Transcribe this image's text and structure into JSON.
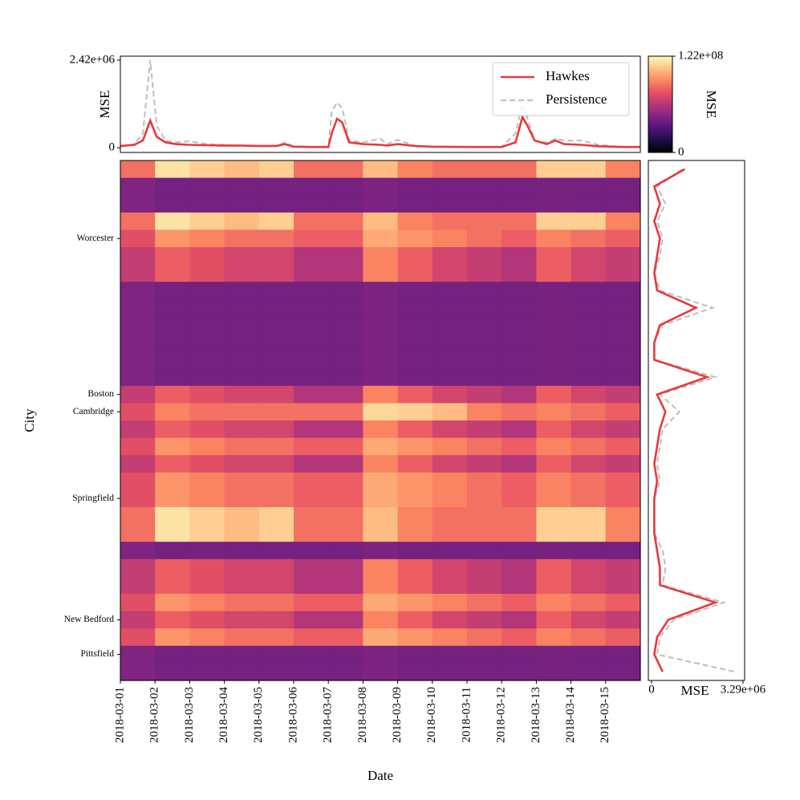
{
  "chart_data": [
    {
      "type": "heatmap",
      "xlabel": "Date",
      "ylabel": "City",
      "colormap": "magma",
      "categories": [
        "2018-03-01",
        "2018-03-02",
        "2018-03-03",
        "2018-03-04",
        "2018-03-05",
        "2018-03-06",
        "2018-03-07",
        "2018-03-08",
        "2018-03-09",
        "2018-03-10",
        "2018-03-11",
        "2018-03-12",
        "2018-03-13",
        "2018-03-14",
        "2018-03-15"
      ],
      "rows": [
        null,
        null,
        null,
        null,
        "Worcester",
        null,
        null,
        null,
        null,
        null,
        null,
        null,
        null,
        "Boston",
        "Cambridge",
        null,
        null,
        null,
        null,
        "Springfield",
        null,
        null,
        null,
        null,
        null,
        null,
        "New Bedford",
        null,
        "Pittsfield",
        null
      ],
      "zlabel": "MSE",
      "zlim": [
        0,
        122000000.0
      ],
      "zticks": [
        0,
        {
          "value": 122000000.0,
          "label": "1.22e+08"
        }
      ],
      "values": [
        [
          85000000.0,
          115000000.0,
          110000000.0,
          105000000.0,
          110000000.0,
          85000000.0,
          85000000.0,
          105000000.0,
          90000000.0,
          85000000.0,
          85000000.0,
          85000000.0,
          110000000.0,
          110000000.0,
          90000000.0
        ],
        [
          45000000.0,
          42000000.0,
          42000000.0,
          42000000.0,
          42000000.0,
          42000000.0,
          42000000.0,
          44000000.0,
          42000000.0,
          42000000.0,
          42000000.0,
          42000000.0,
          43000000.0,
          42000000.0,
          42000000.0
        ],
        [
          45000000.0,
          42000000.0,
          42000000.0,
          42000000.0,
          42000000.0,
          42000000.0,
          42000000.0,
          44000000.0,
          42000000.0,
          42000000.0,
          42000000.0,
          42000000.0,
          43000000.0,
          42000000.0,
          42000000.0
        ],
        [
          85000000.0,
          115000000.0,
          110000000.0,
          105000000.0,
          110000000.0,
          85000000.0,
          85000000.0,
          105000000.0,
          90000000.0,
          85000000.0,
          85000000.0,
          85000000.0,
          110000000.0,
          110000000.0,
          90000000.0
        ],
        [
          75000000.0,
          95000000.0,
          90000000.0,
          85000000.0,
          85000000.0,
          80000000.0,
          80000000.0,
          100000000.0,
          95000000.0,
          90000000.0,
          85000000.0,
          80000000.0,
          90000000.0,
          85000000.0,
          80000000.0
        ],
        [
          65000000.0,
          80000000.0,
          75000000.0,
          70000000.0,
          70000000.0,
          60000000.0,
          60000000.0,
          90000000.0,
          80000000.0,
          70000000.0,
          65000000.0,
          60000000.0,
          80000000.0,
          70000000.0,
          65000000.0
        ],
        [
          65000000.0,
          80000000.0,
          75000000.0,
          70000000.0,
          70000000.0,
          60000000.0,
          60000000.0,
          90000000.0,
          80000000.0,
          70000000.0,
          65000000.0,
          60000000.0,
          80000000.0,
          70000000.0,
          65000000.0
        ],
        [
          45000000.0,
          42000000.0,
          42000000.0,
          42000000.0,
          42000000.0,
          42000000.0,
          42000000.0,
          44000000.0,
          42000000.0,
          42000000.0,
          42000000.0,
          42000000.0,
          43000000.0,
          42000000.0,
          42000000.0
        ],
        [
          45000000.0,
          42000000.0,
          42000000.0,
          42000000.0,
          42000000.0,
          42000000.0,
          42000000.0,
          44000000.0,
          42000000.0,
          42000000.0,
          42000000.0,
          42000000.0,
          43000000.0,
          42000000.0,
          42000000.0
        ],
        [
          45000000.0,
          42000000.0,
          42000000.0,
          42000000.0,
          42000000.0,
          42000000.0,
          42000000.0,
          44000000.0,
          42000000.0,
          42000000.0,
          42000000.0,
          42000000.0,
          43000000.0,
          42000000.0,
          42000000.0
        ],
        [
          45000000.0,
          42000000.0,
          42000000.0,
          42000000.0,
          42000000.0,
          42000000.0,
          42000000.0,
          44000000.0,
          42000000.0,
          42000000.0,
          42000000.0,
          42000000.0,
          43000000.0,
          42000000.0,
          42000000.0
        ],
        [
          45000000.0,
          42000000.0,
          42000000.0,
          42000000.0,
          42000000.0,
          42000000.0,
          42000000.0,
          44000000.0,
          42000000.0,
          42000000.0,
          42000000.0,
          42000000.0,
          43000000.0,
          42000000.0,
          42000000.0
        ],
        [
          45000000.0,
          42000000.0,
          42000000.0,
          42000000.0,
          42000000.0,
          42000000.0,
          42000000.0,
          44000000.0,
          42000000.0,
          42000000.0,
          42000000.0,
          42000000.0,
          43000000.0,
          42000000.0,
          42000000.0
        ],
        [
          65000000.0,
          80000000.0,
          75000000.0,
          70000000.0,
          70000000.0,
          60000000.0,
          60000000.0,
          90000000.0,
          80000000.0,
          70000000.0,
          65000000.0,
          60000000.0,
          80000000.0,
          70000000.0,
          65000000.0
        ],
        [
          75000000.0,
          90000000.0,
          85000000.0,
          85000000.0,
          85000000.0,
          85000000.0,
          85000000.0,
          112000000.0,
          110000000.0,
          105000000.0,
          90000000.0,
          85000000.0,
          90000000.0,
          85000000.0,
          80000000.0
        ],
        [
          65000000.0,
          80000000.0,
          75000000.0,
          70000000.0,
          70000000.0,
          60000000.0,
          60000000.0,
          90000000.0,
          80000000.0,
          70000000.0,
          65000000.0,
          60000000.0,
          80000000.0,
          70000000.0,
          65000000.0
        ],
        [
          75000000.0,
          95000000.0,
          90000000.0,
          85000000.0,
          85000000.0,
          80000000.0,
          80000000.0,
          100000000.0,
          95000000.0,
          90000000.0,
          85000000.0,
          80000000.0,
          90000000.0,
          85000000.0,
          80000000.0
        ],
        [
          65000000.0,
          80000000.0,
          75000000.0,
          70000000.0,
          70000000.0,
          60000000.0,
          60000000.0,
          90000000.0,
          80000000.0,
          70000000.0,
          65000000.0,
          60000000.0,
          80000000.0,
          70000000.0,
          65000000.0
        ],
        [
          75000000.0,
          95000000.0,
          90000000.0,
          85000000.0,
          85000000.0,
          80000000.0,
          80000000.0,
          100000000.0,
          95000000.0,
          90000000.0,
          85000000.0,
          80000000.0,
          90000000.0,
          85000000.0,
          80000000.0
        ],
        [
          75000000.0,
          95000000.0,
          90000000.0,
          85000000.0,
          85000000.0,
          80000000.0,
          80000000.0,
          100000000.0,
          95000000.0,
          90000000.0,
          85000000.0,
          80000000.0,
          90000000.0,
          85000000.0,
          80000000.0
        ],
        [
          85000000.0,
          115000000.0,
          110000000.0,
          105000000.0,
          110000000.0,
          85000000.0,
          85000000.0,
          105000000.0,
          90000000.0,
          85000000.0,
          85000000.0,
          85000000.0,
          110000000.0,
          110000000.0,
          90000000.0
        ],
        [
          85000000.0,
          115000000.0,
          110000000.0,
          105000000.0,
          110000000.0,
          85000000.0,
          85000000.0,
          105000000.0,
          90000000.0,
          85000000.0,
          85000000.0,
          85000000.0,
          110000000.0,
          110000000.0,
          90000000.0
        ],
        [
          45000000.0,
          42000000.0,
          42000000.0,
          42000000.0,
          42000000.0,
          42000000.0,
          42000000.0,
          44000000.0,
          42000000.0,
          42000000.0,
          42000000.0,
          42000000.0,
          43000000.0,
          42000000.0,
          42000000.0
        ],
        [
          65000000.0,
          80000000.0,
          75000000.0,
          70000000.0,
          70000000.0,
          60000000.0,
          60000000.0,
          90000000.0,
          80000000.0,
          70000000.0,
          65000000.0,
          60000000.0,
          80000000.0,
          70000000.0,
          65000000.0
        ],
        [
          65000000.0,
          80000000.0,
          75000000.0,
          70000000.0,
          70000000.0,
          60000000.0,
          60000000.0,
          90000000.0,
          80000000.0,
          70000000.0,
          65000000.0,
          60000000.0,
          80000000.0,
          70000000.0,
          65000000.0
        ],
        [
          75000000.0,
          95000000.0,
          90000000.0,
          85000000.0,
          85000000.0,
          80000000.0,
          80000000.0,
          100000000.0,
          95000000.0,
          90000000.0,
          85000000.0,
          80000000.0,
          90000000.0,
          85000000.0,
          80000000.0
        ],
        [
          65000000.0,
          80000000.0,
          75000000.0,
          70000000.0,
          70000000.0,
          60000000.0,
          60000000.0,
          90000000.0,
          80000000.0,
          70000000.0,
          65000000.0,
          60000000.0,
          80000000.0,
          70000000.0,
          65000000.0
        ],
        [
          75000000.0,
          95000000.0,
          90000000.0,
          85000000.0,
          85000000.0,
          80000000.0,
          80000000.0,
          100000000.0,
          95000000.0,
          90000000.0,
          85000000.0,
          80000000.0,
          90000000.0,
          85000000.0,
          80000000.0
        ],
        [
          45000000.0,
          42000000.0,
          42000000.0,
          42000000.0,
          42000000.0,
          42000000.0,
          42000000.0,
          44000000.0,
          42000000.0,
          42000000.0,
          42000000.0,
          42000000.0,
          43000000.0,
          42000000.0,
          42000000.0
        ],
        [
          45000000.0,
          42000000.0,
          42000000.0,
          42000000.0,
          42000000.0,
          42000000.0,
          42000000.0,
          44000000.0,
          42000000.0,
          42000000.0,
          42000000.0,
          42000000.0,
          43000000.0,
          42000000.0,
          42000000.0
        ]
      ]
    },
    {
      "type": "line",
      "ylabel": "MSE",
      "legend": "upper right",
      "xlim": [
        0,
        15
      ],
      "ylim": [
        -130000.0,
        2530000.0
      ],
      "yticks": [
        0,
        {
          "value": 2420000.0,
          "label": "2.42e+06"
        }
      ],
      "x": [
        0,
        0.4,
        0.65,
        0.86,
        1.05,
        1.3,
        1.6,
        2,
        2.5,
        3,
        3.5,
        4,
        4.5,
        4.75,
        5,
        5.5,
        6,
        6.1,
        6.25,
        6.4,
        6.6,
        7,
        7.5,
        7.7,
        8,
        8.5,
        9,
        10,
        11,
        11.4,
        11.6,
        11.75,
        11.95,
        12.3,
        12.55,
        12.8,
        13.3,
        13.8,
        14.5,
        15
      ],
      "series": [
        {
          "name": "Hawkes",
          "color": "#e8393a",
          "dash": false,
          "values": [
            50000.0,
            80000.0,
            200000.0,
            750000.0,
            300000.0,
            150000.0,
            100000.0,
            80000.0,
            70000.0,
            60000.0,
            60000.0,
            50000.0,
            50000.0,
            100000.0,
            30000.0,
            20000.0,
            20000.0,
            400000.0,
            800000.0,
            700000.0,
            150000.0,
            100000.0,
            80000.0,
            60000.0,
            100000.0,
            50000.0,
            30000.0,
            20000.0,
            20000.0,
            150000.0,
            850000.0,
            600000.0,
            200000.0,
            100000.0,
            200000.0,
            100000.0,
            80000.0,
            40000.0,
            20000.0,
            20000.0
          ]
        },
        {
          "name": "Persistence",
          "color": "#bdbdbd",
          "dash": true,
          "values": [
            30000.0,
            100000.0,
            400000.0,
            2420000.0,
            600000.0,
            200000.0,
            150000.0,
            180000.0,
            100000.0,
            80000.0,
            60000.0,
            50000.0,
            50000.0,
            150000.0,
            30000.0,
            20000.0,
            20000.0,
            1000000.0,
            1250000.0,
            1100000.0,
            200000.0,
            150000.0,
            250000.0,
            100000.0,
            220000.0,
            50000.0,
            30000.0,
            20000.0,
            20000.0,
            400000.0,
            1200000.0,
            800000.0,
            200000.0,
            150000.0,
            250000.0,
            200000.0,
            200000.0,
            80000.0,
            20000.0,
            20000.0
          ]
        }
      ]
    },
    {
      "type": "line",
      "orientation": "horizontal",
      "xlabel": "MSE",
      "xlim": [
        -115000.0,
        3350000.0
      ],
      "xticks": [
        0,
        {
          "value": 3290000.0,
          "label": "3.29e+06"
        }
      ],
      "series": [
        {
          "name": "Persistence",
          "color": "#bdbdbd",
          "dash": true,
          "values": [
            1100000.0,
            200000.0,
            500000.0,
            200000.0,
            400000.0,
            300000.0,
            100000.0,
            300000.0,
            2200000.0,
            400000.0,
            100000.0,
            100000.0,
            2300000.0,
            300000.0,
            1000000.0,
            400000.0,
            300000.0,
            200000.0,
            300000.0,
            100000.0,
            100000.0,
            100000.0,
            400000.0,
            500000.0,
            400000.0,
            2600000.0,
            800000.0,
            300000.0,
            200000.0,
            3000000.0
          ]
        },
        {
          "name": "Hawkes",
          "color": "#e8393a",
          "dash": false,
          "values": [
            1200000.0,
            100000.0,
            300000.0,
            100000.0,
            300000.0,
            200000.0,
            100000.0,
            200000.0,
            1600000.0,
            300000.0,
            100000.0,
            100000.0,
            2000000.0,
            200000.0,
            500000.0,
            300000.0,
            200000.0,
            100000.0,
            200000.0,
            100000.0,
            100000.0,
            100000.0,
            200000.0,
            300000.0,
            300000.0,
            2300000.0,
            600000.0,
            200000.0,
            100000.0,
            400000.0
          ]
        }
      ]
    }
  ]
}
